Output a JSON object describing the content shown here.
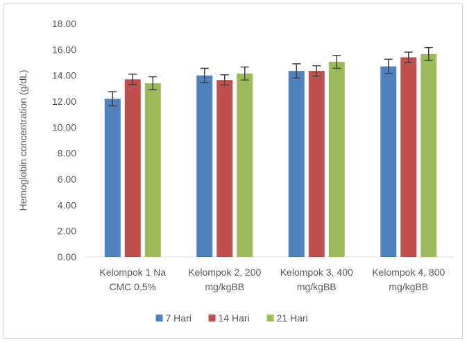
{
  "chart_data": {
    "type": "bar",
    "title": "",
    "xlabel": "",
    "ylabel": "Hemoglobin concentration (g/dL)",
    "ylim": [
      0,
      18
    ],
    "y_ticks": [
      "0.00",
      "2.00",
      "4.00",
      "6.00",
      "8.00",
      "10.00",
      "12.00",
      "14.00",
      "16.00",
      "18.00"
    ],
    "categories": [
      [
        "Kelompok 1 Na",
        "CMC 0,5%"
      ],
      [
        "Kelompok 2, 200",
        "mg/kgBB"
      ],
      [
        "Kelompok 3, 400",
        "mg/kgBB"
      ],
      [
        "Kelompok 4, 800",
        "mg/kgBB"
      ]
    ],
    "series": [
      {
        "name": "7 Hari",
        "color": "#4f81bd",
        "values": [
          12.2,
          14.0,
          14.35,
          14.7
        ],
        "errors": [
          0.55,
          0.55,
          0.55,
          0.55
        ]
      },
      {
        "name": "14 Hari",
        "color": "#c0504d",
        "values": [
          13.7,
          13.65,
          14.35,
          15.4
        ],
        "errors": [
          0.4,
          0.4,
          0.4,
          0.4
        ]
      },
      {
        "name": "21 Hari",
        "color": "#9bbb59",
        "values": [
          13.4,
          14.15,
          15.05,
          15.65
        ],
        "errors": [
          0.5,
          0.5,
          0.5,
          0.5
        ]
      }
    ],
    "grid": false,
    "legend_position": "bottom"
  }
}
